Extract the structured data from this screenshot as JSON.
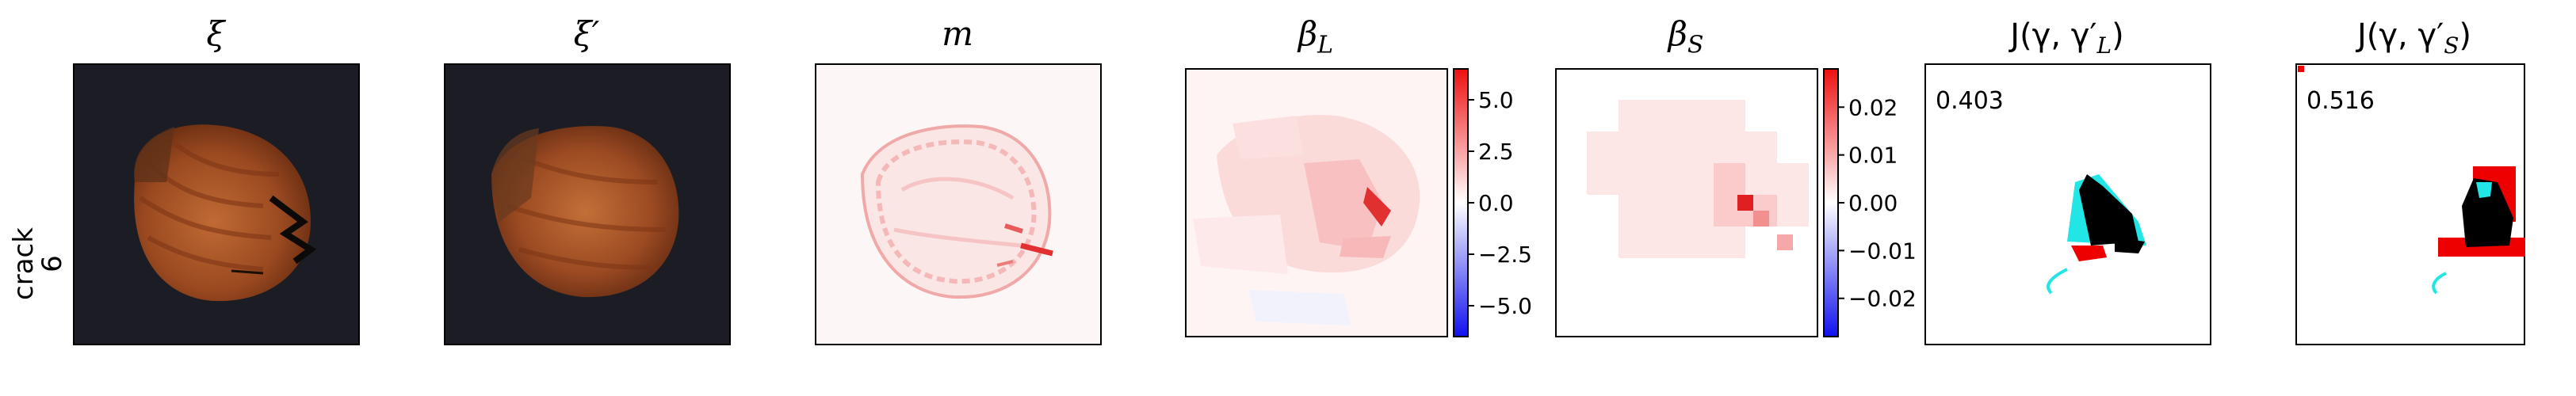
{
  "row_label": {
    "line1": "crack",
    "line2": "6"
  },
  "panels": [
    {
      "id": "xi",
      "title": "ξ",
      "kind": "photo"
    },
    {
      "id": "xi-prime",
      "title": "ξ′",
      "kind": "photo"
    },
    {
      "id": "m",
      "title": "m",
      "kind": "heatmap"
    },
    {
      "id": "beta-L",
      "title": "β",
      "title_sub": "L",
      "kind": "heatmap",
      "colorbar": {
        "ticks": [
          "5.0",
          "2.5",
          "0.0",
          "−2.5",
          "−5.0"
        ],
        "vmin": -6.5,
        "vmax": 6.5,
        "tick_values": [
          5.0,
          2.5,
          0.0,
          -2.5,
          -5.0
        ]
      }
    },
    {
      "id": "beta-S",
      "title": "β",
      "title_sub": "S",
      "kind": "heatmap",
      "colorbar": {
        "ticks": [
          "0.02",
          "0.01",
          "0.00",
          "−0.01",
          "−0.02"
        ],
        "vmin": -0.028,
        "vmax": 0.028,
        "tick_values": [
          0.02,
          0.01,
          0.0,
          -0.01,
          -0.02
        ]
      }
    },
    {
      "id": "J-L",
      "title": "J(γ, γ′",
      "title_sub": "L",
      "title_end": ")",
      "kind": "overlay",
      "score": "0.403"
    },
    {
      "id": "J-S",
      "title": "J(γ, γ′",
      "title_sub": "S",
      "title_end": ")",
      "kind": "overlay",
      "score": "0.516"
    }
  ],
  "colors": {
    "photo_bg": "#1c1d24",
    "hazel_dark": "#6b2f12",
    "hazel_mid": "#a34d22",
    "hazel_light": "#c8703c",
    "heat_red": "#e8201c",
    "heat_blue": "#1a1aee",
    "overlay_black": "#000000",
    "overlay_red": "#ee0000",
    "overlay_cyan": "#22e6e6"
  }
}
